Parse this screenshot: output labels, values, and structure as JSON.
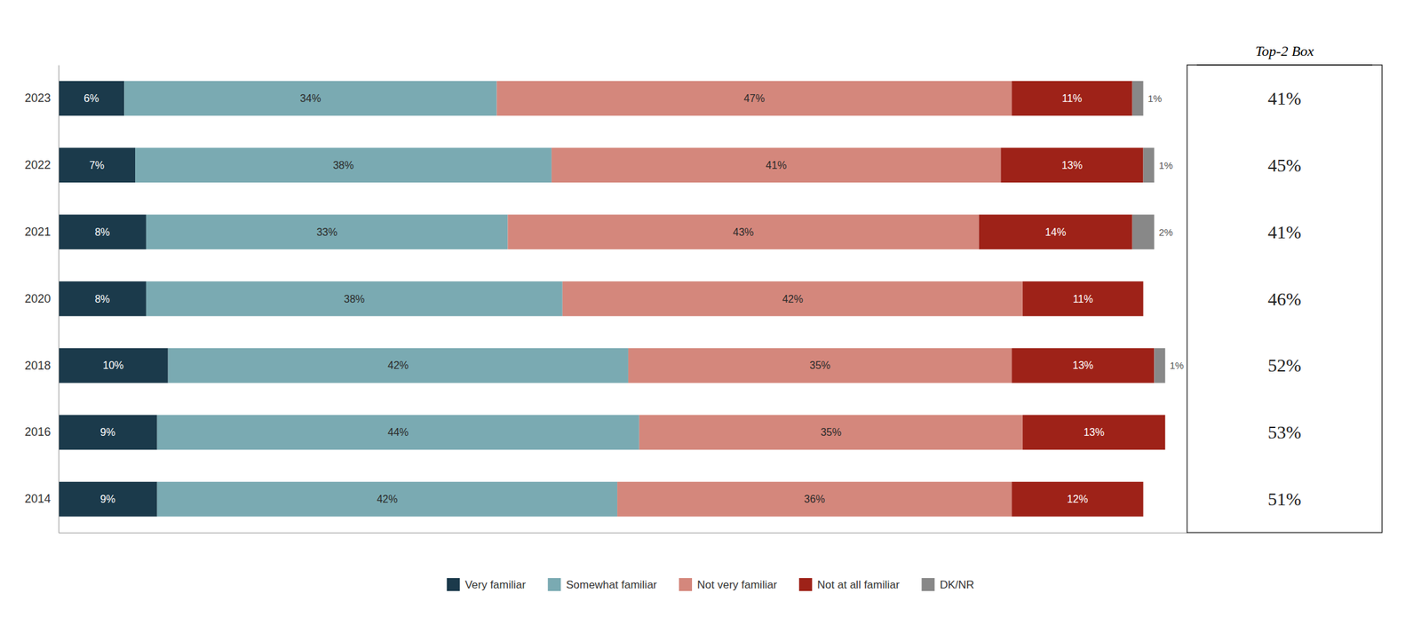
{
  "chart_data": {
    "type": "bar",
    "orientation": "horizontal",
    "stacked": true,
    "data_labels": true,
    "grid": false,
    "legend": "bottom",
    "tick_labels": "y",
    "categories": [
      "2023",
      "2022",
      "2021",
      "2020",
      "2018",
      "2016",
      "2014"
    ],
    "xlim": [
      0,
      103
    ],
    "series": [
      {
        "name": "Very familiar",
        "color": "#1b3a4b",
        "values": [
          6,
          7,
          8,
          8,
          10,
          9,
          9
        ],
        "value_labels": [
          "6%",
          "7%",
          "8%",
          "8%",
          "10%",
          "9%",
          "9%"
        ]
      },
      {
        "name": "Somewhat familiar",
        "color": "#7aaab2",
        "values": [
          34,
          38,
          33,
          38,
          42,
          44,
          42
        ],
        "value_labels": [
          "34%",
          "38%",
          "33%",
          "38%",
          "42%",
          "44%",
          "42%"
        ]
      },
      {
        "name": "Not very familiar",
        "color": "#d4877c",
        "values": [
          47,
          41,
          43,
          42,
          35,
          35,
          36
        ],
        "value_labels": [
          "47%",
          "41%",
          "43%",
          "42%",
          "35%",
          "35%",
          "36%"
        ]
      },
      {
        "name": "Not at all familiar",
        "color": "#9e2218",
        "values": [
          11,
          13,
          14,
          11,
          13,
          13,
          12
        ],
        "value_labels": [
          "11%",
          "13%",
          "14%",
          "11%",
          "13%",
          "13%",
          "12%"
        ]
      },
      {
        "name": "DK/NR",
        "color": "#888888",
        "values": [
          1,
          1,
          2,
          0,
          1,
          0,
          0
        ],
        "value_labels": [
          "1%",
          "1%",
          "2%",
          null,
          "1%",
          null,
          null
        ]
      }
    ],
    "top2box": {
      "title": "Top-2 Box",
      "values": [
        41,
        45,
        41,
        46,
        52,
        53,
        51
      ],
      "value_labels": [
        "41%",
        "45%",
        "41%",
        "46%",
        "52%",
        "53%",
        "51%"
      ]
    }
  }
}
